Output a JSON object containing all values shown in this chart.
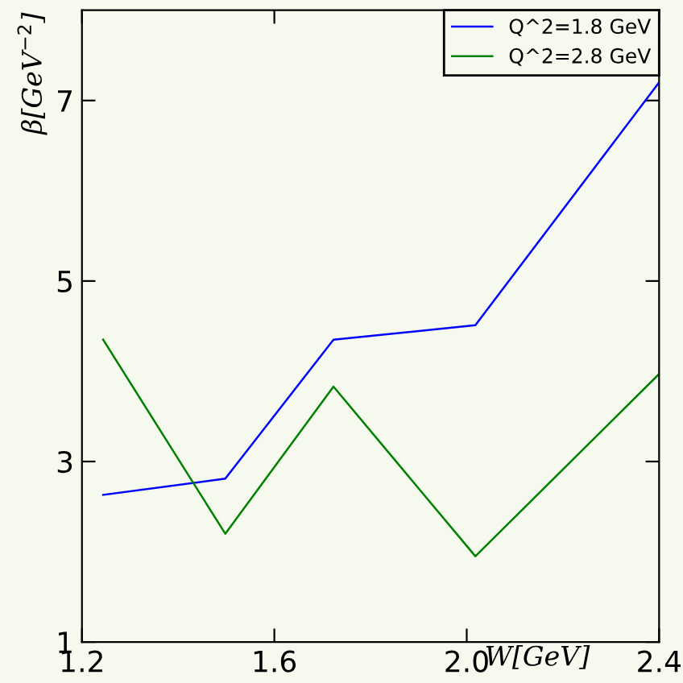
{
  "chart_data": {
    "type": "line",
    "xlabel": "W[GeV]",
    "ylabel": "β[GeV$^{−2}$]",
    "x": [
      1.244,
      1.498,
      1.723,
      2.018,
      2.4
    ],
    "series": [
      {
        "name": "Q^2=1.8 GeV",
        "color": "#0000ff",
        "values": [
          2.63,
          2.81,
          4.35,
          4.51,
          7.2
        ]
      },
      {
        "name": "Q^2=2.8 GeV",
        "color": "#008000",
        "values": [
          4.35,
          2.2,
          3.83,
          1.95,
          3.97
        ]
      }
    ],
    "xlim": [
      1.2,
      2.4
    ],
    "ylim": [
      1,
      8
    ],
    "xticks": [
      1.2,
      1.6,
      {
        "value": 2.0,
        "label": "2.0"
      },
      2.4
    ],
    "yticks": [
      1,
      3,
      5,
      7
    ],
    "grid": false,
    "legend": "top right",
    "marker": "none",
    "line_style": "solid"
  }
}
